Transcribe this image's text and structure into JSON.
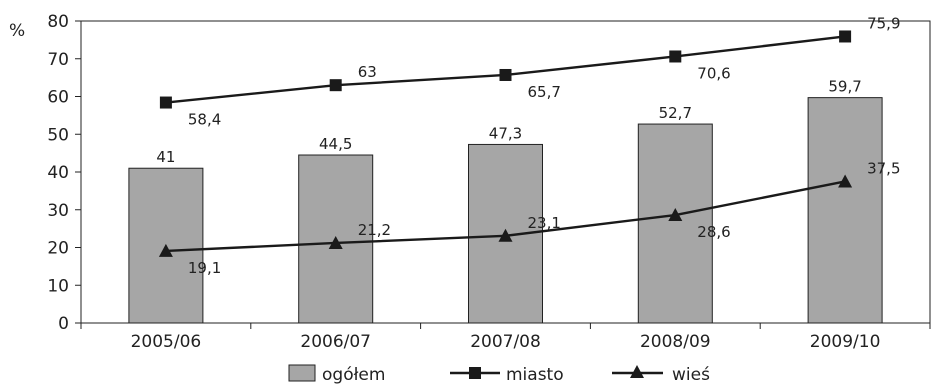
{
  "chart_data": {
    "type": "bar",
    "categories": [
      "2005/06",
      "2006/07",
      "2007/08",
      "2008/09",
      "2009/10"
    ],
    "series": [
      {
        "name": "ogółem",
        "type": "bar",
        "values": [
          41,
          44.5,
          47.3,
          52.7,
          59.7
        ],
        "labels": [
          "41",
          "44,5",
          "47,3",
          "52,7",
          "59,7"
        ]
      },
      {
        "name": "miasto",
        "type": "line",
        "marker": "square",
        "values": [
          58.4,
          63,
          65.7,
          70.6,
          75.9
        ],
        "labels": [
          "58,4",
          "63",
          "65,7",
          "70,6",
          "75,9"
        ]
      },
      {
        "name": "wieś",
        "type": "line",
        "marker": "triangle",
        "values": [
          19.1,
          21.2,
          23.1,
          28.6,
          37.5
        ],
        "labels": [
          "19,1",
          "21,2",
          "23,1",
          "28,6",
          "37,5"
        ]
      }
    ],
    "ylabel": "%",
    "ylim": [
      0,
      80
    ],
    "yticks": [
      "0",
      "10",
      "20",
      "30",
      "40",
      "50",
      "60",
      "70",
      "80"
    ],
    "grid": false,
    "legend": "bottom",
    "colors": {
      "bar_fill": "#a6a6a6",
      "bar_stroke": "#222222",
      "line": "#1a1a1a",
      "axis": "#222222"
    }
  }
}
